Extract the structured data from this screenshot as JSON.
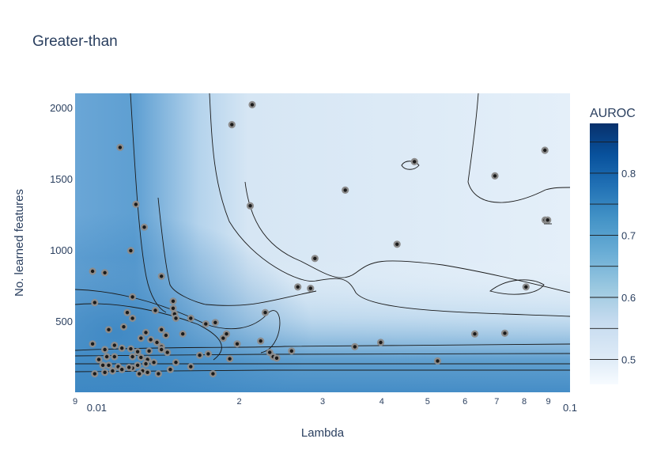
{
  "chart_data": {
    "type": "scatter",
    "title": "Greater-than",
    "xlabel": "Lambda",
    "ylabel": "No. learned features",
    "xscale": "log",
    "xlim": [
      0.009,
      0.1
    ],
    "ylim": [
      0,
      2100
    ],
    "x_ticks": [
      {
        "value": 0.009,
        "label": "9"
      },
      {
        "value": 0.01,
        "label": "0.01",
        "major": true
      },
      {
        "value": 0.02,
        "label": "2"
      },
      {
        "value": 0.03,
        "label": "3"
      },
      {
        "value": 0.04,
        "label": "4"
      },
      {
        "value": 0.05,
        "label": "5"
      },
      {
        "value": 0.06,
        "label": "6"
      },
      {
        "value": 0.07,
        "label": "7"
      },
      {
        "value": 0.08,
        "label": "8"
      },
      {
        "value": 0.09,
        "label": "9"
      },
      {
        "value": 0.1,
        "label": "0.1",
        "major": true
      }
    ],
    "y_ticks": [
      500,
      1000,
      1500,
      2000
    ],
    "colorbar": {
      "title": "AUROC",
      "range": [
        0.46,
        0.88
      ],
      "ticks": [
        0.5,
        0.6,
        0.7,
        0.8
      ],
      "contour_levels": [
        0.5,
        0.55,
        0.6,
        0.65,
        0.7,
        0.75,
        0.8,
        0.85
      ],
      "colors": [
        "#f7fbff",
        "#deebf7",
        "#c6dbef",
        "#9ecae1",
        "#6baed6",
        "#4292c6",
        "#2171b5",
        "#08519c",
        "#08306b"
      ]
    },
    "background": "heatmap with contour lines",
    "marker": {
      "fill": "#1a1a1a",
      "outline": "#8c8c8c"
    },
    "points": [
      [
        0.0098,
        850
      ],
      [
        0.0104,
        840
      ],
      [
        0.0099,
        630
      ],
      [
        0.0112,
        1720
      ],
      [
        0.0121,
        1320
      ],
      [
        0.0126,
        1160
      ],
      [
        0.0118,
        995
      ],
      [
        0.0137,
        815
      ],
      [
        0.0114,
        460
      ],
      [
        0.0106,
        440
      ],
      [
        0.0119,
        670
      ],
      [
        0.0116,
        560
      ],
      [
        0.0119,
        520
      ],
      [
        0.0133,
        575
      ],
      [
        0.0145,
        640
      ],
      [
        0.0145,
        590
      ],
      [
        0.0146,
        550
      ],
      [
        0.0147,
        520
      ],
      [
        0.0152,
        410
      ],
      [
        0.0137,
        440
      ],
      [
        0.014,
        400
      ],
      [
        0.0127,
        420
      ],
      [
        0.0124,
        380
      ],
      [
        0.013,
        370
      ],
      [
        0.0134,
        350
      ],
      [
        0.0137,
        320
      ],
      [
        0.0129,
        290
      ],
      [
        0.0122,
        285
      ],
      [
        0.0118,
        305
      ],
      [
        0.0113,
        310
      ],
      [
        0.0109,
        330
      ],
      [
        0.0104,
        300
      ],
      [
        0.0098,
        340
      ],
      [
        0.0105,
        250
      ],
      [
        0.0109,
        250
      ],
      [
        0.0101,
        230
      ],
      [
        0.0106,
        190
      ],
      [
        0.0103,
        190
      ],
      [
        0.0111,
        180
      ],
      [
        0.0113,
        160
      ],
      [
        0.0108,
        150
      ],
      [
        0.0104,
        140
      ],
      [
        0.0099,
        130
      ],
      [
        0.0119,
        250
      ],
      [
        0.0124,
        245
      ],
      [
        0.0128,
        230
      ],
      [
        0.0132,
        210
      ],
      [
        0.0127,
        200
      ],
      [
        0.0122,
        190
      ],
      [
        0.0119,
        170
      ],
      [
        0.0117,
        175
      ],
      [
        0.0125,
        150
      ],
      [
        0.0128,
        140
      ],
      [
        0.0123,
        130
      ],
      [
        0.0137,
        300
      ],
      [
        0.0141,
        280
      ],
      [
        0.0147,
        210
      ],
      [
        0.0143,
        160
      ],
      [
        0.0135,
        130
      ],
      [
        0.0158,
        180
      ],
      [
        0.0165,
        260
      ],
      [
        0.0172,
        270
      ],
      [
        0.0176,
        130
      ],
      [
        0.0178,
        490
      ],
      [
        0.017,
        480
      ],
      [
        0.0158,
        520
      ],
      [
        0.0185,
        380
      ],
      [
        0.0188,
        410
      ],
      [
        0.0191,
        235
      ],
      [
        0.0198,
        340
      ],
      [
        0.0193,
        1880
      ],
      [
        0.0213,
        2020
      ],
      [
        0.0211,
        1310
      ],
      [
        0.0222,
        360
      ],
      [
        0.0227,
        560
      ],
      [
        0.0232,
        280
      ],
      [
        0.0236,
        250
      ],
      [
        0.024,
        240
      ],
      [
        0.0258,
        290
      ],
      [
        0.0266,
        740
      ],
      [
        0.0283,
        730
      ],
      [
        0.0289,
        940
      ],
      [
        0.0335,
        1420
      ],
      [
        0.0351,
        320
      ],
      [
        0.0398,
        350
      ],
      [
        0.0431,
        1040
      ],
      [
        0.0469,
        1620
      ],
      [
        0.0525,
        220
      ],
      [
        0.0629,
        410
      ],
      [
        0.0694,
        1520
      ],
      [
        0.0728,
        415
      ],
      [
        0.0807,
        740
      ],
      [
        0.0885,
        1700
      ],
      [
        0.0886,
        1210
      ],
      [
        0.0897,
        1210
      ]
    ]
  }
}
